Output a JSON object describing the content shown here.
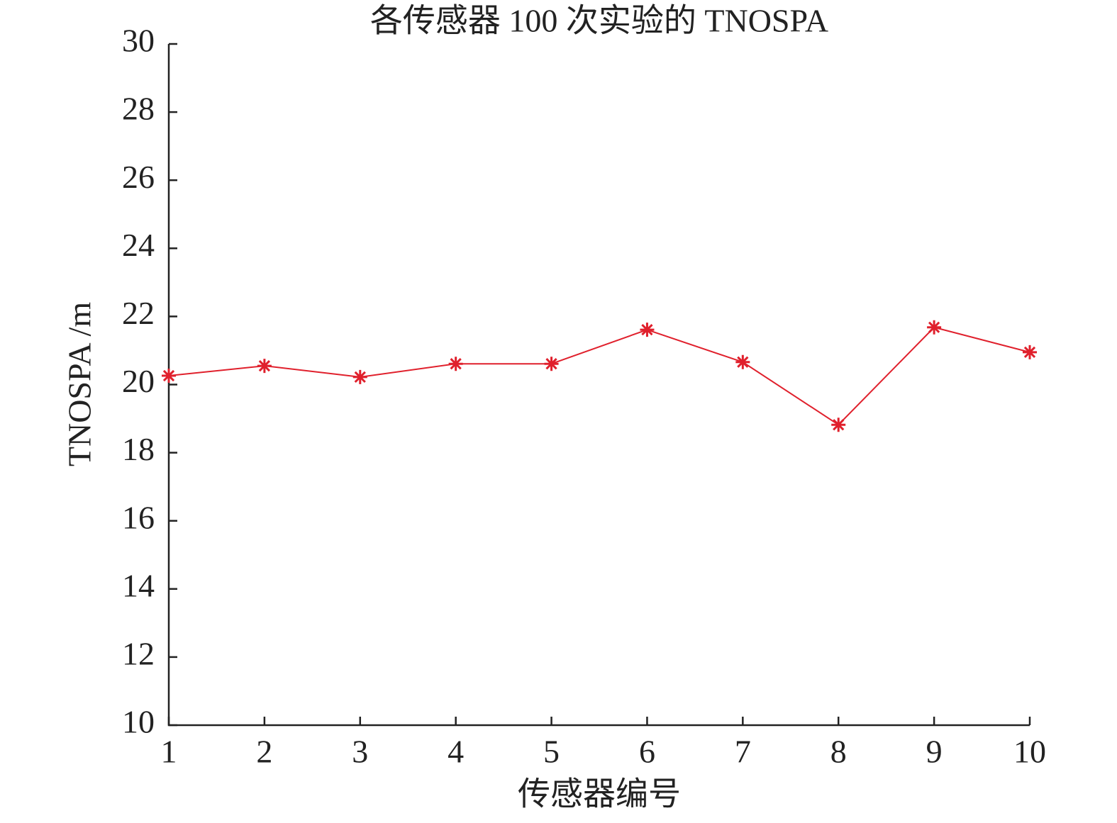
{
  "chart_data": {
    "type": "line",
    "title": "各传感器 100 次实验的 TNOSPA",
    "xlabel": "传感器编号",
    "ylabel": "TNOSPA /m",
    "x": [
      1,
      2,
      3,
      4,
      5,
      6,
      7,
      8,
      9,
      10
    ],
    "series": [
      {
        "name": "TNOSPA",
        "color": "#e0202c",
        "values": [
          20.26,
          20.55,
          20.22,
          20.61,
          20.61,
          21.61,
          20.66,
          18.82,
          21.68,
          20.95
        ]
      }
    ],
    "xlim": [
      1,
      10
    ],
    "xticks": [
      1,
      2,
      3,
      4,
      5,
      6,
      7,
      8,
      9,
      10
    ],
    "ylim": [
      10,
      30
    ],
    "yticks": [
      10,
      12,
      14,
      16,
      18,
      20,
      22,
      24,
      26,
      28,
      30
    ],
    "grid": false
  }
}
